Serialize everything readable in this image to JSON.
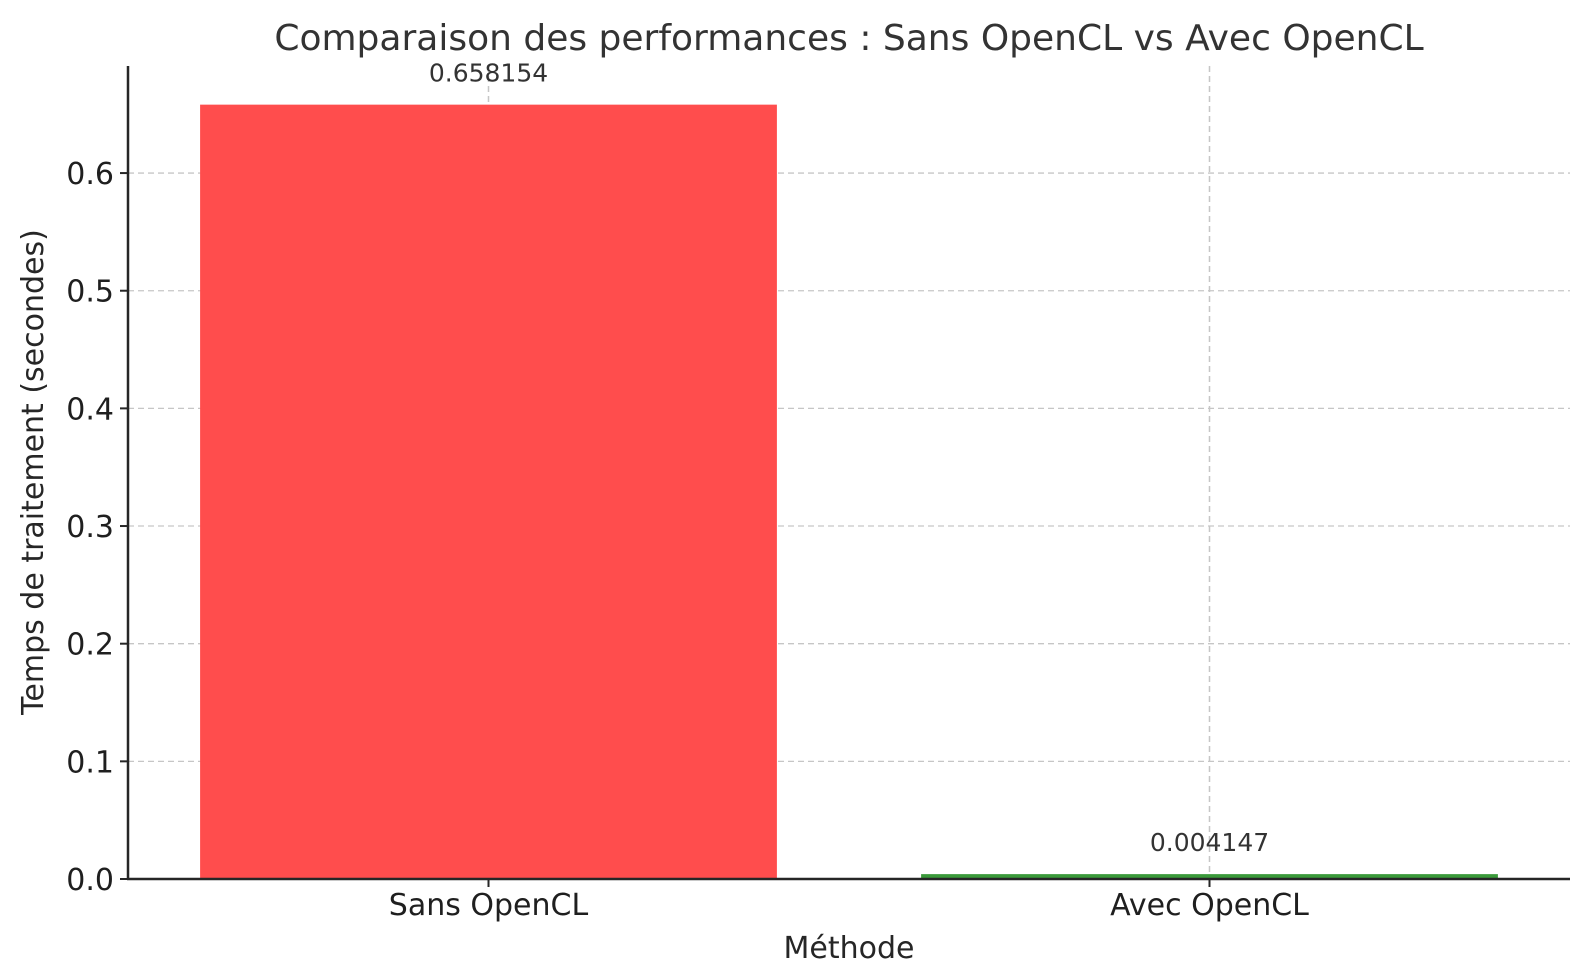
{
  "chart_data": {
    "type": "bar",
    "title": "Comparaison des performances : Sans OpenCL vs Avec OpenCL",
    "xlabel": "Méthode",
    "ylabel": "Temps de traitement (secondes)",
    "categories": [
      "Sans OpenCL",
      "Avec OpenCL"
    ],
    "values": [
      0.658154,
      0.004147
    ],
    "value_labels": [
      "0.658154",
      "0.004147"
    ],
    "colors": [
      "#ff4d4d",
      "#3a9a3a"
    ],
    "ylim": [
      0,
      0.691
    ],
    "yticks": [
      0.0,
      0.1,
      0.2,
      0.3,
      0.4,
      0.5,
      0.6
    ],
    "ytick_labels": [
      "0.0",
      "0.1",
      "0.2",
      "0.3",
      "0.4",
      "0.5",
      "0.6"
    ],
    "grid": true
  }
}
